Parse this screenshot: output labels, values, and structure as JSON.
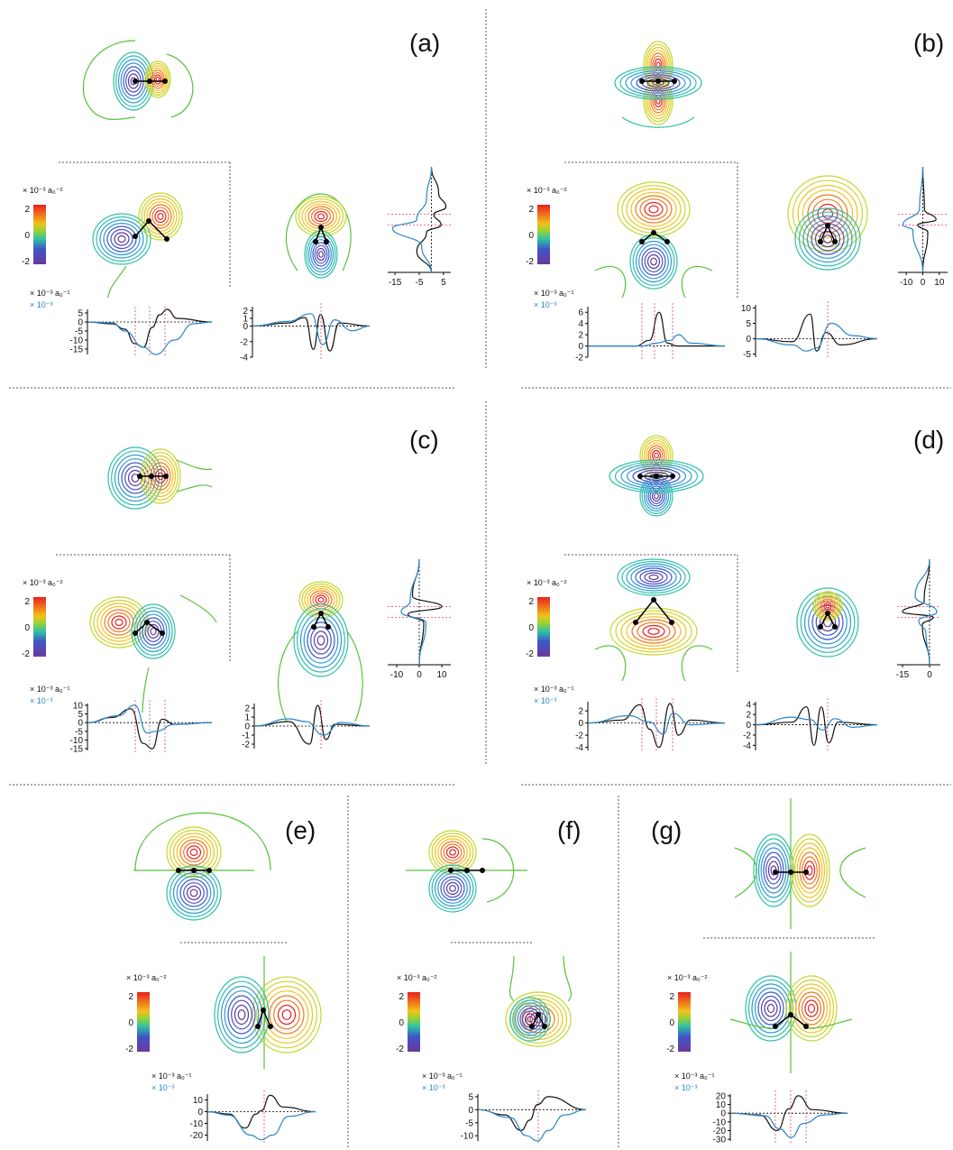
{
  "colors": {
    "primary": "#111111",
    "secondary": "#2a86c8",
    "guide": "#e0457b",
    "contour_scale": [
      "#5b3a9a",
      "#3f55c8",
      "#2f9ad6",
      "#2fc0a8",
      "#56c23a",
      "#c7d62b",
      "#f2c21b",
      "#f07a1c",
      "#e8201f"
    ]
  },
  "colorbar": {
    "unit": "× 10⁻³ a₀⁻²",
    "ticks": [
      "2",
      "0",
      "-2"
    ]
  },
  "profile_units": {
    "black": "× 10⁻³ a₀⁻¹",
    "blue": "× 10⁻³"
  },
  "chart_data": [
    {
      "panel": "(a)",
      "type": "line",
      "bottom_left": {
        "y_ticks": [
          "5",
          "0",
          "-5",
          "-10",
          "-15"
        ],
        "ylim": [
          -18,
          7
        ],
        "series": [
          {
            "color": "black",
            "x": [
              0,
              0.2,
              0.3,
              0.38,
              0.45,
              0.52,
              0.58,
              0.64,
              0.72,
              1
            ],
            "y": [
              0,
              -1,
              -4,
              -12,
              -14,
              -3,
              4,
              7,
              2,
              0
            ]
          },
          {
            "color": "blue",
            "x": [
              0,
              0.2,
              0.3,
              0.45,
              0.55,
              0.7,
              0.85,
              1
            ],
            "y": [
              0,
              -0.5,
              -5,
              -14,
              -18,
              -10,
              -1,
              0
            ]
          }
        ]
      },
      "bottom_right": {
        "y_ticks": [
          "2",
          "1",
          "0",
          "-2",
          "-4"
        ],
        "ylim": [
          -4,
          2.5
        ],
        "series": [
          {
            "color": "black",
            "x": [
              0,
              0.3,
              0.45,
              0.52,
              0.58,
              0.66,
              0.74,
              1
            ],
            "y": [
              0,
              0.4,
              1.1,
              -3,
              1.5,
              -3.2,
              0.4,
              0
            ]
          },
          {
            "color": "blue",
            "x": [
              0,
              0.3,
              0.5,
              0.6,
              0.7,
              0.85,
              1
            ],
            "y": [
              0,
              0.6,
              1.6,
              -2.4,
              0.8,
              -0.6,
              0
            ]
          }
        ]
      },
      "side": {
        "x_ticks": [
          "-15",
          "-5",
          "5"
        ],
        "xlim": [
          -18,
          8
        ],
        "series": [
          {
            "color": "black",
            "y": [
              0,
              0.25,
              0.38,
              0.45,
              0.55,
              0.62,
              0.8,
              1
            ],
            "x": [
              0,
              3,
              6,
              1,
              4,
              -2,
              -6,
              0
            ]
          },
          {
            "color": "blue",
            "y": [
              0,
              0.3,
              0.5,
              0.58,
              0.75,
              1
            ],
            "x": [
              0,
              -2,
              -6,
              -16,
              -4,
              0
            ]
          }
        ]
      }
    },
    {
      "panel": "(b)",
      "type": "line",
      "bottom_left": {
        "y_ticks": [
          "6",
          "4",
          "2",
          "0",
          "-2"
        ],
        "ylim": [
          -2,
          7
        ],
        "series": [
          {
            "color": "black",
            "x": [
              0,
              0.35,
              0.45,
              0.52,
              0.58,
              0.65,
              1
            ],
            "y": [
              0,
              0,
              1,
              6,
              0.5,
              0,
              0
            ]
          },
          {
            "color": "blue",
            "x": [
              0,
              0.4,
              0.5,
              0.6,
              0.66,
              0.75,
              1
            ],
            "y": [
              0,
              0,
              0.5,
              1,
              2,
              0.5,
              0
            ]
          }
        ]
      },
      "bottom_right": {
        "y_ticks": [
          "10",
          "5",
          "0",
          "-5"
        ],
        "ylim": [
          -6,
          11
        ],
        "series": [
          {
            "color": "black",
            "x": [
              0,
              0.3,
              0.45,
              0.5,
              0.58,
              0.7,
              1
            ],
            "y": [
              0,
              -1,
              8,
              -4,
              2,
              -2,
              0
            ]
          },
          {
            "color": "blue",
            "x": [
              0,
              0.3,
              0.42,
              0.5,
              0.62,
              0.8,
              1
            ],
            "y": [
              0,
              -2,
              -4,
              -3,
              5,
              1,
              0
            ]
          }
        ]
      },
      "side": {
        "x_ticks": [
          "-10",
          "0",
          "10"
        ],
        "xlim": [
          -15,
          15
        ],
        "series": [
          {
            "color": "black",
            "y": [
              0,
              0.4,
              0.5,
              0.55,
              0.62,
              1
            ],
            "x": [
              0,
              1,
              8,
              -3,
              3,
              0
            ]
          },
          {
            "color": "blue",
            "y": [
              0,
              0.4,
              0.55,
              0.6,
              1
            ],
            "x": [
              0,
              -2,
              -12,
              -6,
              0
            ]
          }
        ]
      }
    },
    {
      "panel": "(c)",
      "type": "line",
      "bottom_left": {
        "y_ticks": [
          "10",
          "5",
          "0",
          "-5",
          "-10",
          "-15"
        ],
        "ylim": [
          -16,
          11
        ],
        "series": [
          {
            "color": "black",
            "x": [
              0,
              0.2,
              0.35,
              0.45,
              0.52,
              0.6,
              0.7,
              1
            ],
            "y": [
              0,
              3,
              8,
              -12,
              -15,
              2,
              -1,
              0
            ]
          },
          {
            "color": "blue",
            "x": [
              0,
              0.25,
              0.38,
              0.48,
              0.55,
              0.7,
              1
            ],
            "y": [
              0,
              4,
              10,
              -6,
              -5,
              -1,
              0
            ]
          }
        ]
      },
      "bottom_right": {
        "y_ticks": [
          "2",
          "1",
          "0",
          "-1",
          "-2"
        ],
        "ylim": [
          -2.5,
          2.5
        ],
        "series": [
          {
            "color": "black",
            "x": [
              0,
              0.3,
              0.48,
              0.55,
              0.62,
              0.7,
              1
            ],
            "y": [
              0,
              0.5,
              -2,
              2.3,
              -1.5,
              0.2,
              0
            ]
          },
          {
            "color": "blue",
            "x": [
              0,
              0.3,
              0.45,
              0.6,
              0.75,
              1
            ],
            "y": [
              0,
              0.8,
              0.5,
              -1,
              0.4,
              0
            ]
          }
        ]
      },
      "side": {
        "x_ticks": [
          "-10",
          "0",
          "10"
        ],
        "xlim": [
          -14,
          14
        ],
        "series": [
          {
            "color": "black",
            "y": [
              0,
              0.35,
              0.45,
              0.52,
              0.6,
              1
            ],
            "x": [
              0,
              -3,
              10,
              -5,
              2,
              0
            ]
          },
          {
            "color": "blue",
            "y": [
              0,
              0.4,
              0.5,
              0.6,
              1
            ],
            "x": [
              0,
              -4,
              -8,
              3,
              0
            ]
          }
        ]
      }
    },
    {
      "panel": "(d)",
      "type": "line",
      "bottom_left": {
        "y_ticks": [
          "2",
          "0",
          "-2",
          "-4"
        ],
        "ylim": [
          -4.5,
          3.5
        ],
        "series": [
          {
            "color": "black",
            "x": [
              0,
              0.25,
              0.38,
              0.45,
              0.52,
              0.6,
              0.66,
              0.75,
              1
            ],
            "y": [
              0,
              0.5,
              3,
              -1,
              -4,
              3.2,
              -2,
              0.5,
              0
            ]
          },
          {
            "color": "blue",
            "x": [
              0,
              0.3,
              0.45,
              0.55,
              0.62,
              0.75,
              1
            ],
            "y": [
              0,
              1.2,
              0.2,
              -1.8,
              1.6,
              -0.3,
              0
            ]
          }
        ]
      },
      "bottom_right": {
        "y_ticks": [
          "4",
          "2",
          "0",
          "-2",
          "-4"
        ],
        "ylim": [
          -5,
          4.5
        ],
        "series": [
          {
            "color": "black",
            "x": [
              0,
              0.3,
              0.42,
              0.48,
              0.54,
              0.6,
              0.68,
              1
            ],
            "y": [
              0,
              0.5,
              3.5,
              -4,
              3.5,
              -3.5,
              0.5,
              0
            ]
          },
          {
            "color": "blue",
            "x": [
              0,
              0.3,
              0.45,
              0.55,
              0.65,
              0.8,
              1
            ],
            "y": [
              0,
              1.5,
              1,
              -1,
              1.2,
              -0.5,
              0
            ]
          }
        ]
      },
      "side": {
        "x_ticks": [
          "-15",
          "0"
        ],
        "xlim": [
          -18,
          6
        ],
        "series": [
          {
            "color": "black",
            "y": [
              0,
              0.4,
              0.5,
              0.55,
              0.62,
              1
            ],
            "x": [
              0,
              -3,
              -15,
              2,
              -4,
              0
            ]
          },
          {
            "color": "blue",
            "y": [
              0,
              0.35,
              0.5,
              0.58,
              0.7,
              1
            ],
            "x": [
              0,
              -8,
              4,
              -6,
              -2,
              0
            ]
          }
        ]
      }
    },
    {
      "panel": "(e)",
      "type": "line",
      "bottom": {
        "y_ticks": [
          "10",
          "0",
          "-10",
          "-20"
        ],
        "ylim": [
          -25,
          15
        ],
        "series": [
          {
            "color": "black",
            "x": [
              0,
              0.2,
              0.35,
              0.45,
              0.5,
              0.58,
              0.7,
              1
            ],
            "y": [
              0,
              -2,
              -14,
              -2,
              1,
              14,
              4,
              0
            ]
          },
          {
            "color": "blue",
            "x": [
              0,
              0.2,
              0.4,
              0.5,
              0.6,
              0.75,
              1
            ],
            "y": [
              0,
              -3,
              -20,
              -24,
              -20,
              -4,
              0
            ]
          }
        ]
      }
    },
    {
      "panel": "(f)",
      "type": "line",
      "bottom": {
        "y_ticks": [
          "5",
          "0",
          "-5",
          "-10"
        ],
        "ylim": [
          -12,
          6
        ],
        "series": [
          {
            "color": "black",
            "x": [
              0,
              0.25,
              0.4,
              0.48,
              0.55,
              0.65,
              1
            ],
            "y": [
              0,
              -2,
              -8,
              -4,
              2,
              5,
              0
            ]
          },
          {
            "color": "blue",
            "x": [
              0,
              0.3,
              0.45,
              0.55,
              0.65,
              0.8,
              1
            ],
            "y": [
              0,
              -3,
              -10,
              -12,
              -8,
              -2,
              0
            ]
          }
        ]
      }
    },
    {
      "panel": "(g)",
      "type": "line",
      "bottom": {
        "y_ticks": [
          "20",
          "10",
          "0",
          "-10",
          "-20",
          "-30"
        ],
        "ylim": [
          -32,
          22
        ],
        "series": [
          {
            "color": "black",
            "x": [
              0,
              0.25,
              0.4,
              0.5,
              0.58,
              0.7,
              1
            ],
            "y": [
              0,
              -2,
              -20,
              5,
              20,
              4,
              0
            ]
          },
          {
            "color": "blue",
            "x": [
              0,
              0.3,
              0.42,
              0.52,
              0.62,
              0.8,
              1
            ],
            "y": [
              0,
              -3,
              -18,
              -28,
              -12,
              -2,
              0
            ]
          }
        ]
      }
    }
  ]
}
